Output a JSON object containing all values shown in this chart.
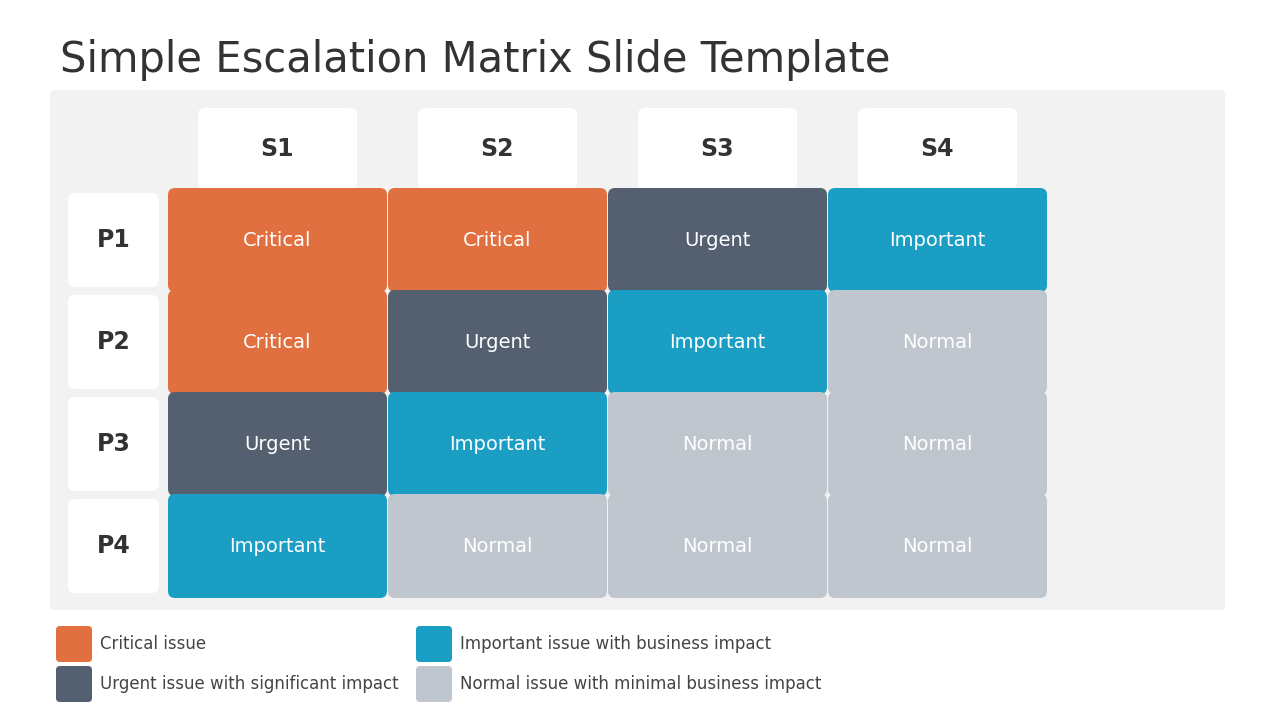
{
  "title": "Simple Escalation Matrix Slide Template",
  "title_fontsize": 30,
  "title_color": "#333333",
  "bg_color": "#e8e8e8",
  "panel_color": "#f2f2f2",
  "col_headers": [
    "S1",
    "S2",
    "S3",
    "S4"
  ],
  "row_headers": [
    "P1",
    "P2",
    "P3",
    "P4"
  ],
  "matrix": [
    [
      "Critical",
      "Critical",
      "Urgent",
      "Important"
    ],
    [
      "Critical",
      "Urgent",
      "Important",
      "Normal"
    ],
    [
      "Urgent",
      "Important",
      "Normal",
      "Normal"
    ],
    [
      "Important",
      "Normal",
      "Normal",
      "Normal"
    ]
  ],
  "colors": {
    "Critical": "#E07040",
    "Urgent": "#546070",
    "Important": "#1A9EC4",
    "Normal": "#C0C6CE"
  },
  "text_color": "#ffffff",
  "legend": [
    {
      "label": "Critical issue",
      "color": "#E07040"
    },
    {
      "label": "Urgent issue with significant impact",
      "color": "#546070"
    },
    {
      "label": "Important issue with business impact",
      "color": "#1A9EC4"
    },
    {
      "label": "Normal issue with minimal business impact",
      "color": "#C0C6CE"
    }
  ],
  "fig_w": 12.8,
  "fig_h": 7.2,
  "dpi": 100
}
